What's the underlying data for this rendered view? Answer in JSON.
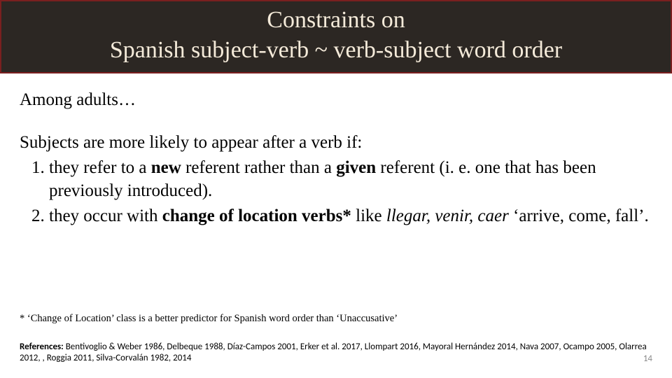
{
  "colors": {
    "title_bg": "#2c2723",
    "title_border": "#7a1f1f",
    "title_text": "#f4ead9",
    "body_text": "#000000",
    "pagenum": "#8a8a8a",
    "background": "#ffffff"
  },
  "title": {
    "line1": "Constraints on",
    "line2": "Spanish subject-verb ~ verb-subject word order"
  },
  "body": {
    "intro": "Among adults…",
    "lead": "Subjects are more likely to appear after a verb if:",
    "item1": {
      "pre": "they refer to a ",
      "bold1": "new",
      "mid": " referent rather than a ",
      "bold2": "given",
      "post": " referent (i. e. one that has been previously introduced)."
    },
    "item2": {
      "pre": "they occur with ",
      "bold": "change of location verbs*",
      "mid": " like ",
      "italic": "llegar, venir, caer",
      "post": " ‘arrive, come, fall’."
    }
  },
  "footnote": "* ‘Change of Location’ class is a better predictor for Spanish word order than ‘Unaccusative’",
  "references": {
    "label": "References: ",
    "text": "Bentivoglio & Weber 1986, Delbeque 1988, Díaz-Campos 2001, Erker et al. 2017, Llompart 2016, Mayoral Hernández 2014, Nava 2007, Ocampo 2005, Olarrea 2012, , Roggia 2011, Silva-Corvalán 1982, 2014"
  },
  "page_number": "14"
}
